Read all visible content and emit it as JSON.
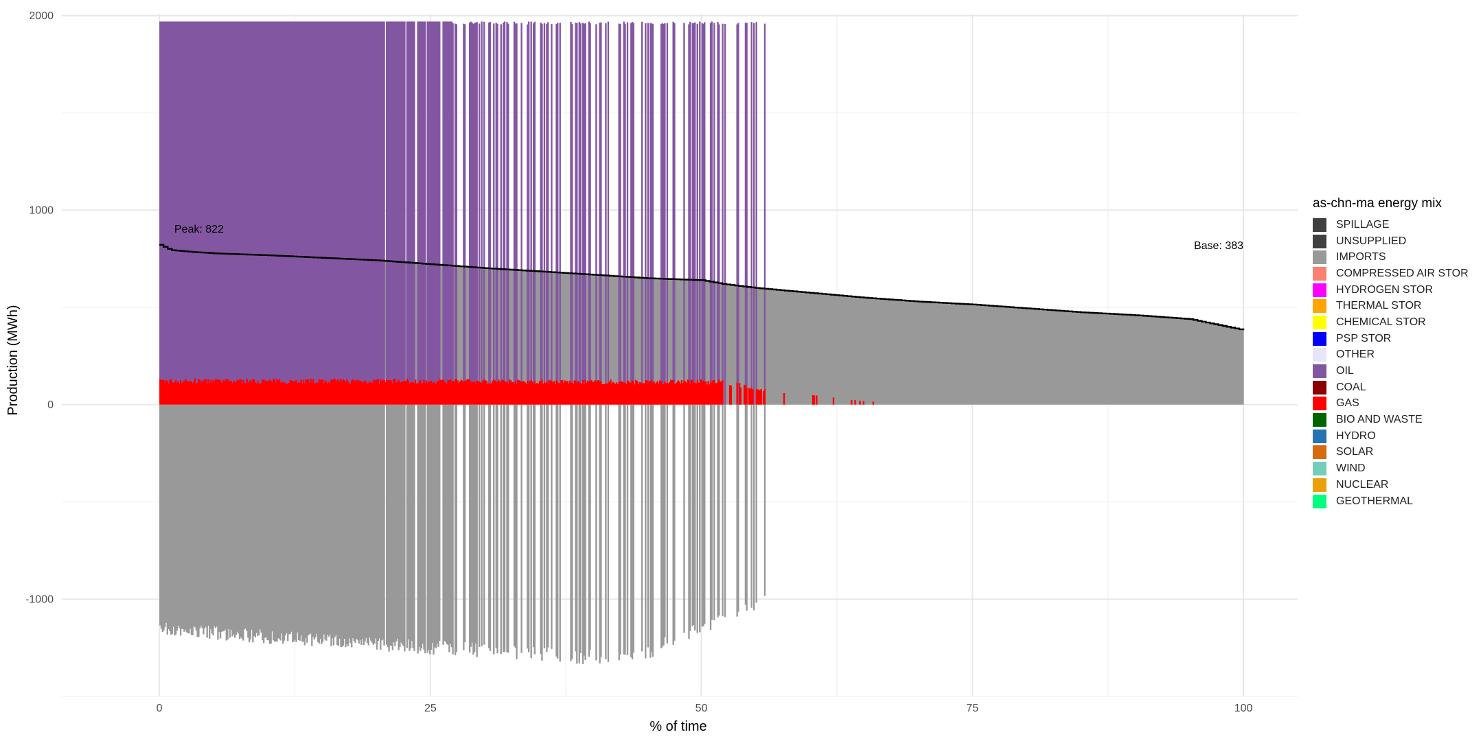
{
  "chart_data": {
    "type": "area",
    "title": "",
    "xlabel": "% of time",
    "ylabel": "Production (MWh)",
    "xlim": [
      -9,
      105
    ],
    "ylim": [
      -1500,
      2010
    ],
    "x_ticks": [
      0,
      25,
      50,
      75,
      100
    ],
    "y_ticks": [
      -1000,
      0,
      1000,
      2000
    ],
    "grid": true,
    "legend_position": "right",
    "legend_title": "as-chn-ma energy mix",
    "legend": [
      {
        "name": "SPILLAGE",
        "color": "#404040"
      },
      {
        "name": "UNSUPPLIED",
        "color": "#404040"
      },
      {
        "name": "IMPORTS",
        "color": "#999999"
      },
      {
        "name": "COMPRESSED AIR STOR",
        "color": "#FA8072"
      },
      {
        "name": "HYDROGEN STOR",
        "color": "#FF00FF"
      },
      {
        "name": "THERMAL STOR",
        "color": "#FFA500"
      },
      {
        "name": "CHEMICAL STOR",
        "color": "#FFFF00"
      },
      {
        "name": "PSP STOR",
        "color": "#0000FF"
      },
      {
        "name": "OTHER",
        "color": "#E6E6FA"
      },
      {
        "name": "OIL",
        "color": "#8356A2"
      },
      {
        "name": "COAL",
        "color": "#8B0000"
      },
      {
        "name": "GAS",
        "color": "#FF0000"
      },
      {
        "name": "BIO AND WASTE",
        "color": "#006400"
      },
      {
        "name": "HYDRO",
        "color": "#2772B2"
      },
      {
        "name": "SOLAR",
        "color": "#D66B0D"
      },
      {
        "name": "WIND",
        "color": "#74CDB9"
      },
      {
        "name": "NUCLEAR",
        "color": "#E9A00C"
      },
      {
        "name": "GEOTHERMAL",
        "color": "#00FF7F"
      }
    ],
    "load_duration_curve": {
      "x": [
        0,
        1,
        3,
        5,
        10,
        15,
        20,
        25,
        30,
        35,
        40,
        45,
        50,
        52,
        55,
        60,
        65,
        70,
        75,
        80,
        85,
        90,
        95,
        100
      ],
      "y": [
        822,
        795,
        785,
        778,
        768,
        755,
        742,
        722,
        702,
        685,
        668,
        650,
        640,
        620,
        600,
        575,
        550,
        530,
        515,
        495,
        475,
        460,
        440,
        383
      ]
    },
    "series": [
      {
        "name": "OIL",
        "x": [
          0,
          20,
          27,
          40,
          47,
          52,
          56
        ],
        "y": [
          1970,
          1970,
          1970,
          1970,
          1970,
          1970,
          1970
        ]
      },
      {
        "name": "GAS",
        "x": [
          0,
          20,
          27,
          40,
          47,
          52,
          56,
          65,
          70
        ],
        "y": [
          135,
          135,
          135,
          130,
          130,
          130,
          80,
          20,
          10
        ]
      },
      {
        "name": "IMPORTS",
        "x": [
          0,
          10,
          20,
          27,
          35,
          40,
          45,
          52,
          56,
          60
        ],
        "y": [
          -1150,
          -1195,
          -1230,
          -1255,
          -1280,
          -1300,
          -1270,
          -1100,
          -1000,
          -900
        ]
      }
    ],
    "annotations": [
      {
        "text": "Peak: 822",
        "x": 1,
        "y": 885
      },
      {
        "text": "Base: 383",
        "x": 100,
        "y": 800
      }
    ]
  }
}
